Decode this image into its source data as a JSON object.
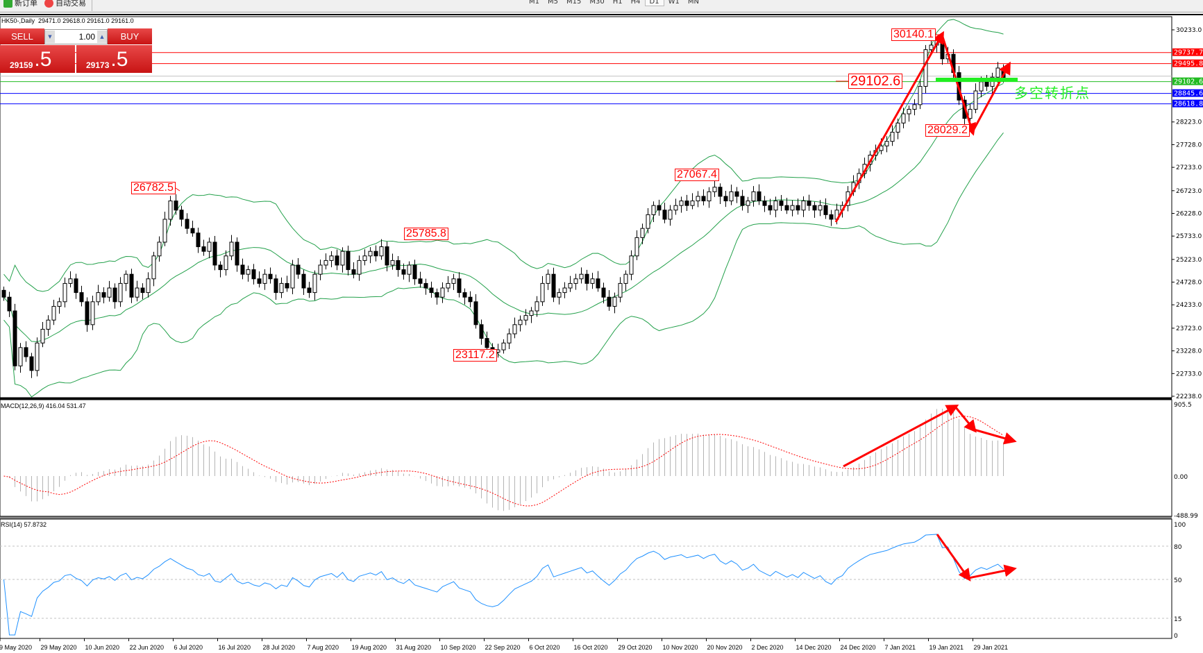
{
  "toolbar": {
    "new_order": "新订单",
    "auto_trading": "自动交易",
    "timeframes": [
      "M1",
      "M5",
      "M15",
      "M30",
      "H1",
      "H4",
      "D1",
      "W1",
      "MN"
    ],
    "active_timeframe": "D1",
    "icons": [
      "zoom-in-icon",
      "zoom-out-icon",
      "bar-chart-icon",
      "candle-chart-icon",
      "line-chart-icon",
      "tile-icon",
      "autoscroll-icon",
      "chart-shift-icon",
      "indicators-icon",
      "periods-icon",
      "templates-icon",
      "cursor-icon",
      "crosshair-icon",
      "vertical-line-icon",
      "horizontal-line-icon",
      "trendline-icon",
      "fibonacci-icon",
      "text-icon",
      "label-icon",
      "arrows-icon",
      "search-icon",
      "notification-icon"
    ]
  },
  "chart_header": {
    "symbol": "HK50-,Daily",
    "ohlc": "29471.0 29618.0 29161.0 29161.0"
  },
  "one_click": {
    "sell_label": "SELL",
    "buy_label": "BUY",
    "lot": "1.00",
    "sell_big": "29159",
    "sell_small": ".5",
    "buy_big": "29173",
    "buy_small": ".5"
  },
  "colors": {
    "bull": "#ffffff",
    "bear": "#000000",
    "bands": "#22a04a",
    "rsi": "#1e90ff",
    "signal": "#ff0000",
    "hist": "#b4b4b4",
    "annotation": "#ff0000",
    "note": "#22ee22"
  },
  "annotations": {
    "labels": [
      "26782.5",
      "25785.8",
      "23117.2",
      "27067.4",
      "30140.1",
      "29102.6",
      "28029.2"
    ],
    "note": "多空转折点"
  },
  "levels": [
    {
      "price": 29737.7,
      "label": "29737.7",
      "color": "#ff0000"
    },
    {
      "price": 29495.8,
      "label": "29495.8",
      "color": "#ff0000"
    },
    {
      "price": 29102.6,
      "label": "29102.6",
      "color": "#22bb22"
    },
    {
      "price": 28845.6,
      "label": "28845.6",
      "color": "#0000ff"
    },
    {
      "price": 28618.8,
      "label": "28618.8",
      "color": "#0000ff"
    }
  ],
  "chart_data": {
    "type": "candlestick",
    "ylim": [
      22238.0,
      30233.0
    ],
    "yticks": [
      "30233.0",
      "28223.0",
      "27728.0",
      "27233.0",
      "26723.0",
      "26228.0",
      "25733.0",
      "25223.0",
      "24728.0",
      "24233.0",
      "23723.0",
      "23228.0",
      "22733.0",
      "22238.0"
    ],
    "xticks": [
      "9 May 2020",
      "29 May 2020",
      "10 Jun 2020",
      "22 Jun 2020",
      "6 Jul 2020",
      "16 Jul 2020",
      "28 Jul 2020",
      "7 Aug 2020",
      "19 Aug 2020",
      "31 Aug 2020",
      "10 Sep 2020",
      "22 Sep 2020",
      "6 Oct 2020",
      "16 Oct 2020",
      "29 Oct 2020",
      "10 Nov 2020",
      "20 Nov 2020",
      "2 Dec 2020",
      "14 Dec 2020",
      "24 Dec 2020",
      "7 Jan 2021",
      "19 Jan 2021",
      "29 Jan 2021"
    ],
    "close_approx": [
      24400,
      24100,
      22900,
      23300,
      23100,
      22800,
      23400,
      23700,
      23900,
      24200,
      24300,
      24700,
      24800,
      24500,
      24300,
      23800,
      24300,
      24500,
      24400,
      24600,
      24300,
      24700,
      24900,
      24400,
      24600,
      24500,
      24800,
      25300,
      25600,
      26100,
      26500,
      26300,
      26100,
      25900,
      25800,
      25500,
      25400,
      25600,
      25100,
      25000,
      25300,
      25600,
      25100,
      24900,
      25000,
      24800,
      24700,
      24900,
      24800,
      24500,
      24700,
      24600,
      25100,
      24900,
      24600,
      24500,
      24900,
      25100,
      25200,
      25300,
      25100,
      25400,
      25000,
      24900,
      25200,
      25300,
      25400,
      25300,
      25500,
      25100,
      25200,
      25000,
      24900,
      25100,
      24800,
      24700,
      24600,
      24500,
      24400,
      24600,
      24700,
      24800,
      24500,
      24400,
      24300,
      23800,
      23500,
      23300,
      23200,
      23250,
      23400,
      23600,
      23800,
      23900,
      24000,
      24100,
      24300,
      24700,
      24900,
      24400,
      24500,
      24600,
      24700,
      24800,
      24900,
      24700,
      24800,
      24600,
      24400,
      24200,
      24400,
      24700,
      24900,
      25300,
      25700,
      25900,
      26200,
      26400,
      26300,
      26100,
      26300,
      26400,
      26500,
      26400,
      26500,
      26600,
      26500,
      26700,
      26800,
      26600,
      26500,
      26700,
      26600,
      26400,
      26500,
      26700,
      26500,
      26400,
      26300,
      26500,
      26400,
      26300,
      26400,
      26300,
      26500,
      26400,
      26300,
      26400,
      26200,
      26100,
      26300,
      26400,
      26700,
      26900,
      27100,
      27300,
      27500,
      27600,
      27700,
      27800,
      28000,
      28200,
      28400,
      28500,
      28600,
      29000,
      29800,
      29900,
      30000,
      29600,
      29700,
      29300,
      28700,
      28300,
      28500,
      28900,
      29100,
      29000,
      29200,
      29400,
      29161
    ],
    "bollinger": {
      "period": 20,
      "deviation": 2
    },
    "macd": {
      "label": "MACD(12,26,9) 416.04 531.47",
      "ylim": [
        -488.99,
        905.5
      ],
      "yticks": [
        "905.5",
        "0.00",
        "-488.99"
      ]
    },
    "rsi": {
      "label": "RSI(14) 57.8732",
      "period": 14,
      "ylim": [
        0,
        100
      ],
      "yticks": [
        "100",
        "80",
        "50",
        "15",
        "0"
      ],
      "levels": [
        80,
        50,
        15
      ]
    }
  }
}
